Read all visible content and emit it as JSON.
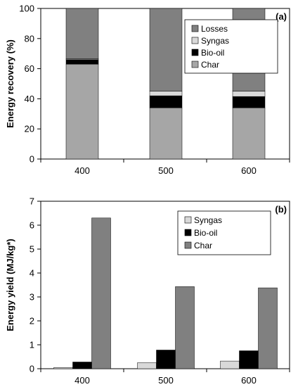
{
  "chart_data": [
    {
      "type": "bar",
      "stacked": true,
      "panel_label": "(a)",
      "xlabel": "",
      "ylabel": "Energy recovery (%)",
      "categories": [
        "400",
        "500",
        "600"
      ],
      "ylim": [
        0,
        100
      ],
      "yticks": [
        0,
        20,
        40,
        60,
        80,
        100
      ],
      "legend_position": "top-right",
      "legend_order": [
        "Losses",
        "Syngas",
        "Bio-oil",
        "Char"
      ],
      "series": [
        {
          "name": "Char",
          "color": "#a6a6a6",
          "values": [
            63,
            34,
            34
          ]
        },
        {
          "name": "Bio-oil",
          "color": "#000000",
          "values": [
            3,
            8,
            7.5
          ]
        },
        {
          "name": "Syngas",
          "color": "#d9d9d9",
          "values": [
            0.5,
            3,
            3.5
          ]
        },
        {
          "name": "Losses",
          "color": "#808080",
          "values": [
            33.5,
            55,
            55
          ]
        }
      ]
    },
    {
      "type": "bar",
      "stacked": false,
      "panel_label": "(b)",
      "xlabel": "",
      "ylabel": "Energy yield (MJ/kg*)",
      "categories": [
        "400",
        "500",
        "600"
      ],
      "ylim": [
        0,
        7
      ],
      "yticks": [
        0,
        1,
        2,
        3,
        4,
        5,
        6,
        7
      ],
      "legend_position": "top-right",
      "legend_order": [
        "Syngas",
        "Bio-oil",
        "Char"
      ],
      "series": [
        {
          "name": "Syngas",
          "color": "#d9d9d9",
          "values": [
            0.05,
            0.25,
            0.32
          ]
        },
        {
          "name": "Bio-oil",
          "color": "#000000",
          "values": [
            0.28,
            0.78,
            0.75
          ]
        },
        {
          "name": "Char",
          "color": "#808080",
          "values": [
            6.3,
            3.43,
            3.38
          ]
        }
      ]
    }
  ]
}
